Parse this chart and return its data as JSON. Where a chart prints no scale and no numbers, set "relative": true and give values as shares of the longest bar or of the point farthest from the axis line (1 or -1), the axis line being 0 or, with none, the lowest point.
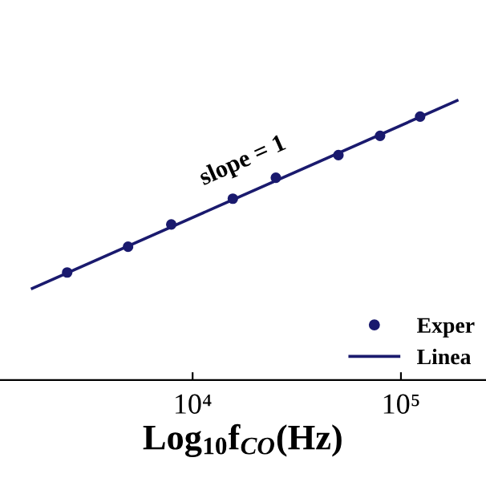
{
  "chart_data": {
    "type": "scatter",
    "relative": true,
    "xlabel": "Log$_{10}$f$_{CO}$(Hz)",
    "log": "x",
    "xlim": [
      1190,
      256000
    ],
    "xticks": [
      {
        "value": 10000,
        "label": "10⁴"
      },
      {
        "value": 100000,
        "label": "10⁵"
      }
    ],
    "annotations": [
      "slope = 1"
    ],
    "legend": "bottom right",
    "grid": false,
    "series": [
      {
        "name": "Exper",
        "marker": "circle",
        "color": "#1a1a6e",
        "x": [
          2500,
          4900,
          7900,
          15600,
          25100,
          50100,
          79400,
          123600
        ],
        "values": [
          0.385,
          0.477,
          0.557,
          0.649,
          0.724,
          0.805,
          0.874,
          0.943
        ]
      },
      {
        "name": "Linea",
        "type": "line",
        "marker": "none",
        "line_style": "solid",
        "color": "#1a1a6e",
        "x": [
          1700,
          186000
        ],
        "values": [
          0.328,
          1
        ]
      }
    ]
  }
}
